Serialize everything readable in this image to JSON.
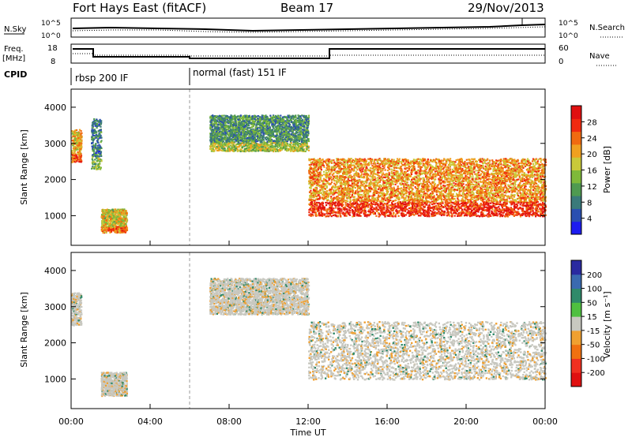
{
  "header": {
    "station": "Fort Hays East (fitACF)",
    "beam": "Beam 17",
    "date": "29/Nov/2013"
  },
  "strip": {
    "nsky_label": "N.Sky",
    "nsky_ticks": [
      "10^5",
      "10^0"
    ],
    "nsearch_label": "N.Search",
    "nsearch_ticks": [
      "10^5",
      "10^0"
    ],
    "freq_label": "Freq.",
    "freq_unit": "[MHz]",
    "freq_ticks": [
      "18",
      "8"
    ],
    "nave_label": "Nave",
    "nave_ticks": [
      "60",
      "0"
    ],
    "cpid_label": "CPID",
    "cpid_segments": [
      {
        "label": "rbsp 200 IF",
        "start_hour": 0
      },
      {
        "label": "normal (fast) 151 IF",
        "start_hour": 6
      }
    ]
  },
  "axes": {
    "xlabel": "Time UT",
    "x_ticks": [
      "00:00",
      "04:00",
      "08:00",
      "12:00",
      "16:00",
      "20:00",
      "00:00"
    ],
    "ylabel": "Slant Range [km]",
    "y_ticks": [
      "1000",
      "2000",
      "3000",
      "4000"
    ]
  },
  "power_scale": {
    "label": "Power [dB]",
    "ticks": [
      "4",
      "8",
      "12",
      "16",
      "20",
      "24",
      "28"
    ],
    "colors": [
      "#1c1cf0",
      "#2a4fb0",
      "#3a7a7a",
      "#4f9a50",
      "#7fb93a",
      "#c9c93a",
      "#f0a020",
      "#f06a10",
      "#f02a10",
      "#e01010"
    ]
  },
  "velocity_scale": {
    "label": "Velocity [m s⁻¹]",
    "ticks": [
      "200",
      "100",
      "50",
      "15",
      "-15",
      "-50",
      "-100",
      "-200"
    ],
    "colors": [
      "#2a2aa0",
      "#3a6ab0",
      "#2f8a6a",
      "#4fc040",
      "#c8c8c0",
      "#f0a030",
      "#f07010",
      "#f03020",
      "#e01010"
    ]
  },
  "chart_data": [
    {
      "type": "heatmap",
      "title": "Fort Hays East (fitACF) Beam 17 29/Nov/2013",
      "xlabel": "Time UT",
      "ylabel": "Slant Range [km]",
      "xlim": [
        0,
        24
      ],
      "ylim": [
        180,
        4500
      ],
      "colorbar": {
        "label": "Power [dB]",
        "range": [
          0,
          30
        ]
      },
      "features": [
        {
          "t_start": 0.0,
          "t_end": 0.5,
          "range_km": [
            2500,
            3400
          ],
          "power_db": 22
        },
        {
          "t_start": 1.0,
          "t_end": 1.5,
          "range_km": [
            2300,
            3700
          ],
          "power_db": 10
        },
        {
          "t_start": 1.5,
          "t_end": 2.8,
          "range_km": [
            550,
            1200
          ],
          "power_db": 20
        },
        {
          "t_start": 7.0,
          "t_end": 12.0,
          "range_km": [
            2800,
            3800
          ],
          "power_db": 12
        },
        {
          "t_start": 12.0,
          "t_end": 24.0,
          "range_km": [
            1000,
            2600
          ],
          "power_db": 24
        }
      ]
    },
    {
      "type": "heatmap",
      "title": "",
      "xlabel": "Time UT",
      "ylabel": "Slant Range [km]",
      "xlim": [
        0,
        24
      ],
      "ylim": [
        180,
        4500
      ],
      "colorbar": {
        "label": "Velocity [m s⁻¹]",
        "range": [
          -200,
          200
        ]
      },
      "features": [
        {
          "t_start": 0.0,
          "t_end": 0.5,
          "range_km": [
            2500,
            3400
          ],
          "velocity_ms": 0
        },
        {
          "t_start": 1.5,
          "t_end": 2.8,
          "range_km": [
            550,
            1200
          ],
          "velocity_ms": 0
        },
        {
          "t_start": 7.0,
          "t_end": 12.0,
          "range_km": [
            2800,
            3800
          ],
          "velocity_ms": 0
        },
        {
          "t_start": 12.0,
          "t_end": 24.0,
          "range_km": [
            1000,
            2600
          ],
          "velocity_ms": -20
        }
      ]
    }
  ]
}
